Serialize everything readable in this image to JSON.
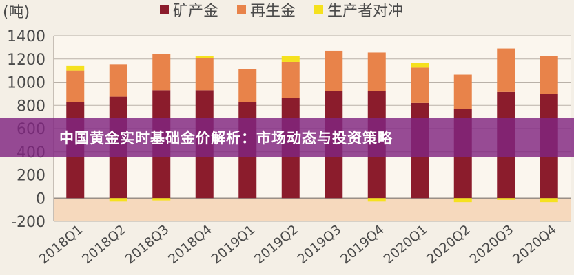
{
  "chart_data": {
    "type": "bar",
    "stacked": true,
    "unit_label": "(吨)",
    "categories": [
      "2018Q1",
      "2018Q2",
      "2018Q3",
      "2018Q4",
      "2019Q1",
      "2019Q2",
      "2019Q3",
      "2019Q4",
      "2020Q1",
      "2020Q2",
      "2020Q3",
      "2020Q4"
    ],
    "series": [
      {
        "name": "矿产金",
        "color": "#8b1c2c",
        "values": [
          830,
          875,
          930,
          930,
          830,
          865,
          920,
          925,
          820,
          770,
          915,
          900
        ]
      },
      {
        "name": "再生金",
        "color": "#e8834a",
        "values": [
          270,
          280,
          310,
          280,
          285,
          310,
          350,
          330,
          305,
          295,
          375,
          325
        ]
      },
      {
        "name": "生产者对冲",
        "color": "#f5e11e",
        "values": [
          40,
          -30,
          -20,
          15,
          0,
          50,
          0,
          -30,
          40,
          -35,
          -15,
          -35
        ]
      }
    ],
    "ylim": [
      -200,
      1400
    ],
    "yticks": [
      1400,
      1200,
      1000,
      800,
      600,
      400,
      200,
      0,
      -200
    ],
    "grid": true,
    "legend_position": "top"
  },
  "banner": {
    "text": "中国黄金实时基础金价解析：市场动态与投资策略"
  }
}
